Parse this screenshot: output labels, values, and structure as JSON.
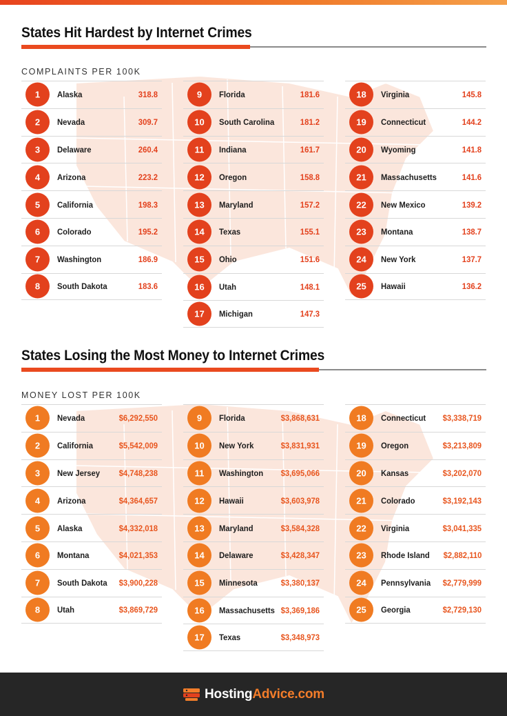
{
  "colors": {
    "accent_red": "#e3411d",
    "accent_orange": "#f07b22",
    "map_tint": "#fbe6dc",
    "footer_bg": "#262626"
  },
  "section1": {
    "title": "States Hit Hardest by Internet Crimes",
    "subtitle": "COMPLAINTS PER 100K",
    "columns": [
      [
        {
          "rank": "1",
          "state": "Alaska",
          "value": "318.8"
        },
        {
          "rank": "2",
          "state": "Nevada",
          "value": "309.7"
        },
        {
          "rank": "3",
          "state": "Delaware",
          "value": "260.4"
        },
        {
          "rank": "4",
          "state": "Arizona",
          "value": "223.2"
        },
        {
          "rank": "5",
          "state": "California",
          "value": "198.3"
        },
        {
          "rank": "6",
          "state": "Colorado",
          "value": "195.2"
        },
        {
          "rank": "7",
          "state": "Washington",
          "value": "186.9"
        },
        {
          "rank": "8",
          "state": "South Dakota",
          "value": "183.6"
        }
      ],
      [
        {
          "rank": "9",
          "state": "Florida",
          "value": "181.6"
        },
        {
          "rank": "10",
          "state": "South Carolina",
          "value": "181.2"
        },
        {
          "rank": "11",
          "state": "Indiana",
          "value": "161.7"
        },
        {
          "rank": "12",
          "state": "Oregon",
          "value": "158.8"
        },
        {
          "rank": "13",
          "state": "Maryland",
          "value": "157.2"
        },
        {
          "rank": "14",
          "state": "Texas",
          "value": "155.1"
        },
        {
          "rank": "15",
          "state": "Ohio",
          "value": "151.6"
        },
        {
          "rank": "16",
          "state": "Utah",
          "value": "148.1"
        },
        {
          "rank": "17",
          "state": "Michigan",
          "value": "147.3"
        }
      ],
      [
        {
          "rank": "18",
          "state": "Virginia",
          "value": "145.8"
        },
        {
          "rank": "19",
          "state": "Connecticut",
          "value": "144.2"
        },
        {
          "rank": "20",
          "state": "Wyoming",
          "value": "141.8"
        },
        {
          "rank": "21",
          "state": "Massachusetts",
          "value": "141.6"
        },
        {
          "rank": "22",
          "state": "New Mexico",
          "value": "139.2"
        },
        {
          "rank": "23",
          "state": "Montana",
          "value": "138.7"
        },
        {
          "rank": "24",
          "state": "New York",
          "value": "137.7"
        },
        {
          "rank": "25",
          "state": "Hawaii",
          "value": "136.2"
        }
      ]
    ]
  },
  "section2": {
    "title": "States Losing the Most Money to Internet Crimes",
    "subtitle": "MONEY LOST PER 100K",
    "columns": [
      [
        {
          "rank": "1",
          "state": "Nevada",
          "value": "$6,292,550"
        },
        {
          "rank": "2",
          "state": "California",
          "value": "$5,542,009"
        },
        {
          "rank": "3",
          "state": "New Jersey",
          "value": "$4,748,238"
        },
        {
          "rank": "4",
          "state": "Arizona",
          "value": "$4,364,657"
        },
        {
          "rank": "5",
          "state": "Alaska",
          "value": "$4,332,018"
        },
        {
          "rank": "6",
          "state": "Montana",
          "value": "$4,021,353"
        },
        {
          "rank": "7",
          "state": "South Dakota",
          "value": "$3,900,228"
        },
        {
          "rank": "8",
          "state": "Utah",
          "value": "$3,869,729"
        }
      ],
      [
        {
          "rank": "9",
          "state": "Florida",
          "value": "$3,868,631"
        },
        {
          "rank": "10",
          "state": "New York",
          "value": "$3,831,931"
        },
        {
          "rank": "11",
          "state": "Washington",
          "value": "$3,695,066"
        },
        {
          "rank": "12",
          "state": "Hawaii",
          "value": "$3,603,978"
        },
        {
          "rank": "13",
          "state": "Maryland",
          "value": "$3,584,328"
        },
        {
          "rank": "14",
          "state": "Delaware",
          "value": "$3,428,347"
        },
        {
          "rank": "15",
          "state": "Minnesota",
          "value": "$3,380,137"
        },
        {
          "rank": "16",
          "state": "Massachusetts",
          "value": "$3,369,186"
        },
        {
          "rank": "17",
          "state": "Texas",
          "value": "$3,348,973"
        }
      ],
      [
        {
          "rank": "18",
          "state": "Connecticut",
          "value": "$3,338,719"
        },
        {
          "rank": "19",
          "state": "Oregon",
          "value": "$3,213,809"
        },
        {
          "rank": "20",
          "state": "Kansas",
          "value": "$3,202,070"
        },
        {
          "rank": "21",
          "state": "Colorado",
          "value": "$3,192,143"
        },
        {
          "rank": "22",
          "state": "Virginia",
          "value": "$3,041,335"
        },
        {
          "rank": "23",
          "state": "Rhode Island",
          "value": "$2,882,110"
        },
        {
          "rank": "24",
          "state": "Pennsylvania",
          "value": "$2,779,999"
        },
        {
          "rank": "25",
          "state": "Georgia",
          "value": "$2,729,130"
        }
      ]
    ]
  },
  "footer": {
    "logo_icon": "server-stack-icon",
    "brand_part1": "Hosting",
    "brand_part2": "Advice.com"
  }
}
